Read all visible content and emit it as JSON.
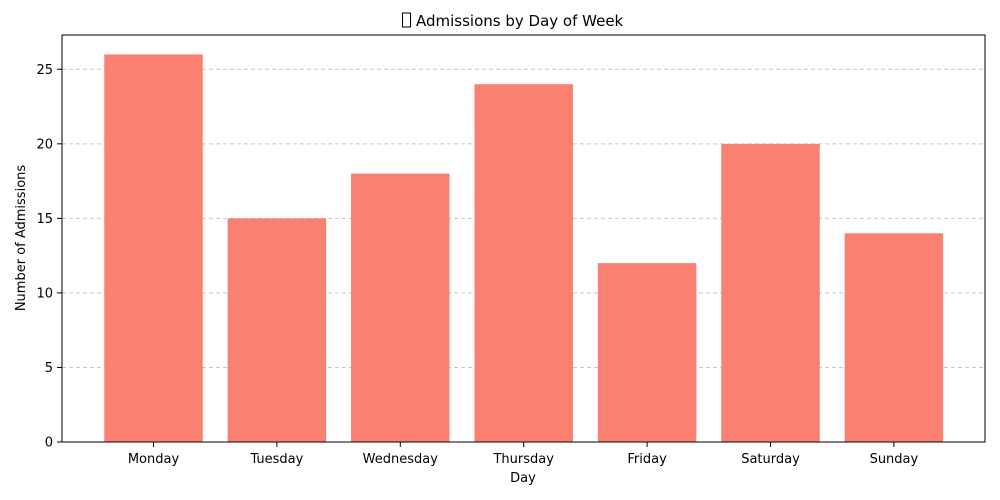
{
  "chart_data": {
    "type": "bar",
    "title": "Admissions by Day of Week",
    "title_icon": "missing-glyph-box",
    "xlabel": "Day",
    "ylabel": "Number of Admissions",
    "categories": [
      "Monday",
      "Tuesday",
      "Wednesday",
      "Thursday",
      "Friday",
      "Saturday",
      "Sunday"
    ],
    "values": [
      26,
      15,
      18,
      24,
      12,
      20,
      14
    ],
    "ylim": [
      0,
      27.3
    ],
    "yticks": [
      0,
      5,
      10,
      15,
      20,
      25
    ],
    "grid": "y-dashed",
    "legend": "none",
    "bar_color": "#fa8072",
    "grid_color": "#c8c8c8",
    "axis_color": "#000000"
  }
}
